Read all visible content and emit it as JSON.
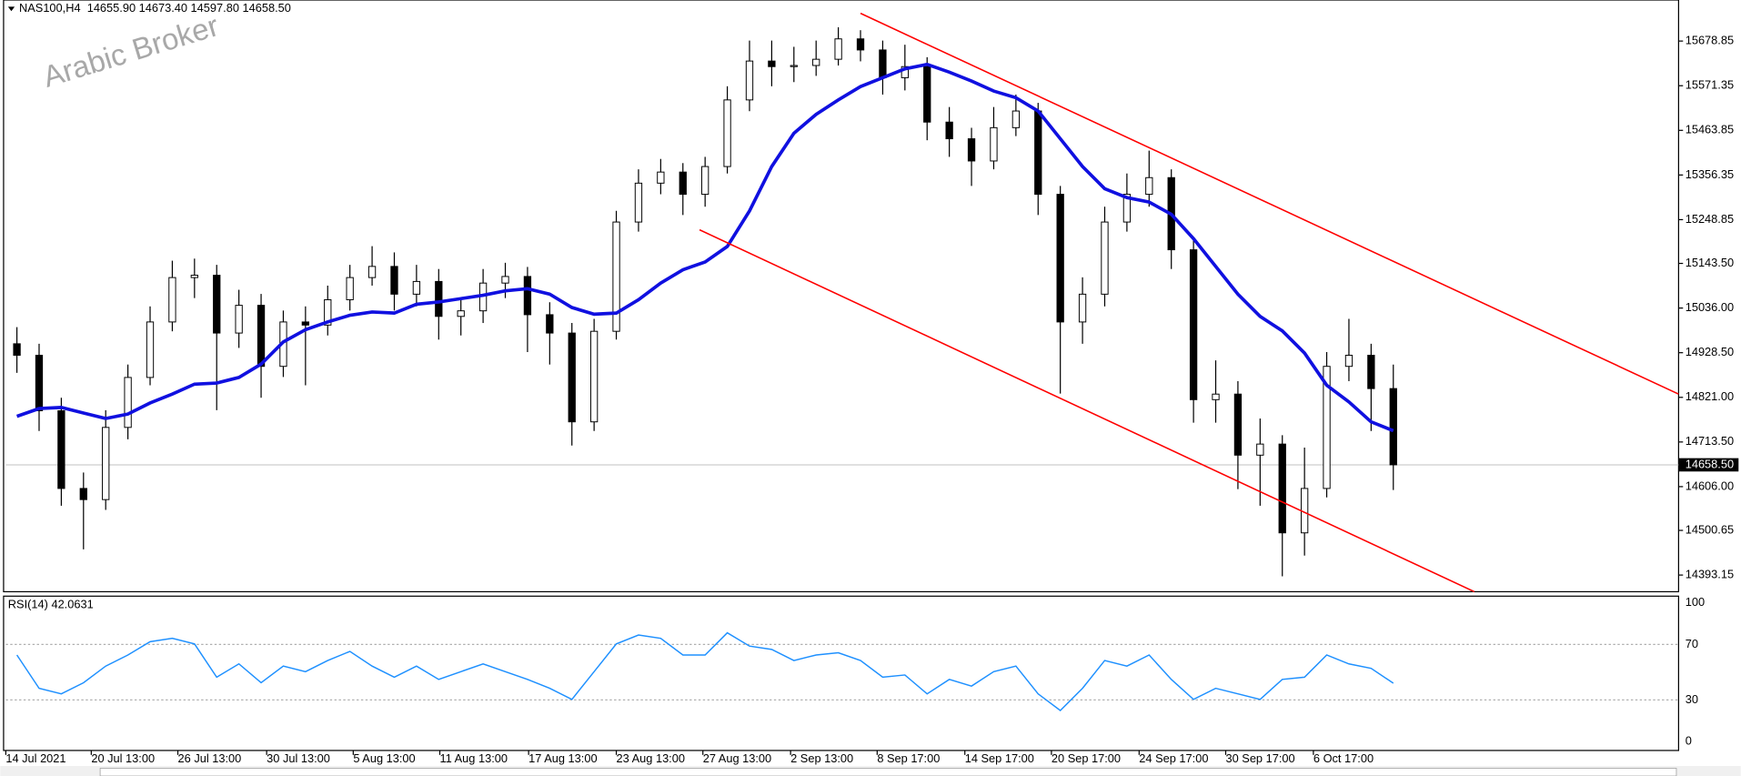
{
  "header": {
    "symbol_line": "NAS100,H4  14655.90 14673.40 14597.80 14658.50"
  },
  "watermark": "Arabic Broker",
  "chart_data": [
    {
      "type": "candlestick",
      "open": [
        14950.0,
        14922.3,
        14788.7,
        14601.6,
        14574.8,
        14748.6,
        14868.9,
        15002.5,
        15109.4,
        15115.0,
        14975.8,
        15042.6,
        14895.6,
        15002.5,
        14995.0,
        15056.0,
        15109.4,
        15136.2,
        15069.4,
        15100.0,
        15015.9,
        15029.3,
        15096.1,
        15112.0,
        15020.0,
        14975.8,
        14762.0,
        14980.0,
        15243.1,
        15336.7,
        15363.4,
        15309.9,
        15376.7,
        15537.1,
        15630.7,
        15617.3,
        15620.0,
        15635.0,
        15684.1,
        15657.4,
        15590.6,
        15617.3,
        15483.7,
        15443.6,
        15390.1,
        15470.3,
        15510.4,
        15309.9,
        15002.5,
        15069.4,
        15243.1,
        15309.9,
        15350.0,
        15176.3,
        14815.4,
        14828.8,
        14681.8,
        14708.5,
        14494.7,
        14601.6,
        14895.6,
        14922.3,
        14842.1
      ],
      "high": [
        14990,
        14950,
        14820,
        14640,
        14790,
        14900,
        15040,
        15150,
        15155,
        15140,
        15080,
        15070,
        15030,
        15040,
        15090,
        15140,
        15185,
        15170,
        15140,
        15130,
        15060,
        15130,
        15145,
        15135,
        15050,
        15000,
        15010,
        15270,
        15370,
        15395,
        15385,
        15400,
        15570,
        15680,
        15680,
        15665,
        15680,
        15712,
        15705,
        15680,
        15670,
        15640,
        15520,
        15470,
        15520,
        15550,
        15530,
        15330,
        15110,
        15280,
        15360,
        15415,
        15370,
        15200,
        14910,
        14860,
        14770,
        14730,
        14700,
        14930,
        15010,
        14950,
        14900
      ],
      "low": [
        14880,
        14740,
        14560,
        14455,
        14550,
        14720,
        14850,
        14980,
        15060,
        14790,
        14940,
        14820,
        14870,
        14850,
        14970,
        15030,
        15090,
        15030,
        15040,
        14960,
        14970,
        15000,
        15060,
        14930,
        14900,
        14705,
        14740,
        14960,
        15220,
        15310,
        15260,
        15280,
        15360,
        15510,
        15570,
        15580,
        15595,
        15620,
        15630,
        15550,
        15560,
        15440,
        15400,
        15330,
        15370,
        15450,
        15260,
        14830,
        14950,
        15040,
        15220,
        15280,
        15130,
        14760,
        14760,
        14600,
        14560,
        14390,
        14440,
        14580,
        14860,
        14740,
        14597.8
      ],
      "close": [
        14922.3,
        14788.7,
        14601.6,
        14574.8,
        14748.6,
        14868.9,
        15002.5,
        15109.4,
        15115.0,
        14975.8,
        15042.6,
        14895.6,
        15002.5,
        14995.0,
        15056.0,
        15109.4,
        15136.2,
        15069.4,
        15100.0,
        15015.9,
        15029.3,
        15096.1,
        15112.0,
        15020.0,
        14975.8,
        14762.0,
        14980.0,
        15243.1,
        15336.7,
        15363.4,
        15309.9,
        15376.7,
        15537.1,
        15630.7,
        15617.3,
        15620.0,
        15635.0,
        15684.1,
        15657.4,
        15590.6,
        15617.3,
        15483.7,
        15443.6,
        15390.1,
        15470.3,
        15510.4,
        15309.9,
        15002.5,
        15069.4,
        15243.1,
        15309.9,
        15350.0,
        15176.3,
        14815.4,
        14828.8,
        14681.8,
        14708.5,
        14494.7,
        14601.6,
        14895.6,
        14922.3,
        14842.1,
        14658.5
      ],
      "up_color": "#ffffff",
      "down_color": "#000000",
      "outline_color": "#000000",
      "ma": {
        "color": "#1010e0",
        "values": [
          14775.3,
          14794.0,
          14796.7,
          14783.3,
          14770.0,
          14780.7,
          14807.4,
          14828.8,
          14852.8,
          14855.5,
          14868.9,
          14901.0,
          14954.4,
          14983.8,
          15002.5,
          15018.6,
          15026.6,
          15023.9,
          15045.3,
          15050.6,
          15058.7,
          15066.7,
          15077.4,
          15082.7,
          15069.4,
          15037.3,
          15021.2,
          15023.9,
          15056.0,
          15096.1,
          15128.2,
          15146.9,
          15184.3,
          15269.8,
          15376.7,
          15456.9,
          15502.4,
          15537.1,
          15569.2,
          15590.6,
          15612.0,
          15622.7,
          15604.0,
          15582.6,
          15558.5,
          15542.5,
          15510.4,
          15443.6,
          15376.7,
          15323.3,
          15301.9,
          15291.2,
          15261.8,
          15203.0,
          15136.2,
          15069.4,
          15015.9,
          14981.1,
          14927.7,
          14850.2,
          14810.1,
          14762.0,
          14740.6
        ]
      },
      "trendlines": [
        {
          "color": "#ff0000",
          "x": [
            38.5,
            75.35
          ],
          "y": [
            15745.6,
            14828.8
          ]
        },
        {
          "color": "#ff0000",
          "x": [
            31.25,
            66.15
          ],
          "y": [
            15224.4,
            14353.0
          ]
        }
      ],
      "last_price": {
        "value": 14658.5,
        "label": "14658.50"
      },
      "ylim": [
        14353.0,
        15777.7
      ],
      "yticks": [
        15678.85,
        15571.35,
        15463.85,
        15356.35,
        15248.85,
        {
          "value": 15143.5,
          "label": "15143.50"
        },
        {
          "value": 15036,
          "label": "15036.00"
        },
        {
          "value": 14928.5,
          "label": "14928.50"
        },
        {
          "value": 14821,
          "label": "14821.00"
        },
        {
          "value": 14713.5,
          "label": "14713.50"
        },
        {
          "value": 14606,
          "label": "14606.00"
        },
        14500.65,
        14393.15
      ],
      "xlim": [
        0,
        75.35
      ],
      "xticks": [
        {
          "value": 0,
          "label": "14 Jul 2021"
        },
        {
          "value": 3.85,
          "label": "20 Jul 13:00"
        },
        {
          "value": 7.75,
          "label": "26 Jul 13:00"
        },
        {
          "value": 11.75,
          "label": "30 Jul 13:00"
        },
        {
          "value": 15.65,
          "label": "5 Aug 13:00"
        },
        {
          "value": 19.55,
          "label": "11 Aug 13:00"
        },
        {
          "value": 23.55,
          "label": "17 Aug 13:00"
        },
        {
          "value": 27.5,
          "label": "23 Aug 13:00"
        },
        {
          "value": 31.4,
          "label": "27 Aug 13:00"
        },
        {
          "value": 35.35,
          "label": "2 Sep 13:00"
        },
        {
          "value": 39.25,
          "label": "8 Sep 17:00"
        },
        {
          "value": 43.2,
          "label": "14 Sep 17:00"
        },
        {
          "value": 47.1,
          "label": "20 Sep 17:00"
        },
        {
          "value": 51.05,
          "label": "24 Sep 17:00"
        },
        {
          "value": 54.95,
          "label": "30 Sep 17:00"
        },
        {
          "value": 58.9,
          "label": "6 Oct 17:00"
        }
      ]
    },
    {
      "type": "line",
      "title": "RSI(14) 42.0631",
      "color": "#1e90ff",
      "values": [
        62.4,
        38.4,
        34.4,
        42.4,
        54.4,
        62.4,
        72,
        74.4,
        70.4,
        46.4,
        56,
        42.4,
        54.4,
        50.4,
        58.4,
        65,
        54.4,
        46.4,
        54.4,
        44.8,
        50.4,
        56,
        50.4,
        44.8,
        38.4,
        30.4,
        50.4,
        70.4,
        76.8,
        74.4,
        62.4,
        62.4,
        78.4,
        68.8,
        66.4,
        58.4,
        62.4,
        64,
        58.4,
        46.4,
        48,
        34.4,
        44.8,
        40,
        50.4,
        54.4,
        34.4,
        22.4,
        38.4,
        58.4,
        54.4,
        62.4,
        44.8,
        30.4,
        38.4,
        34.4,
        30.4,
        44.8,
        46.4,
        62.4,
        56,
        52.8,
        42.0631
      ],
      "ylim": [
        0,
        100
      ],
      "yticks": [
        0,
        30,
        70,
        100
      ]
    }
  ]
}
